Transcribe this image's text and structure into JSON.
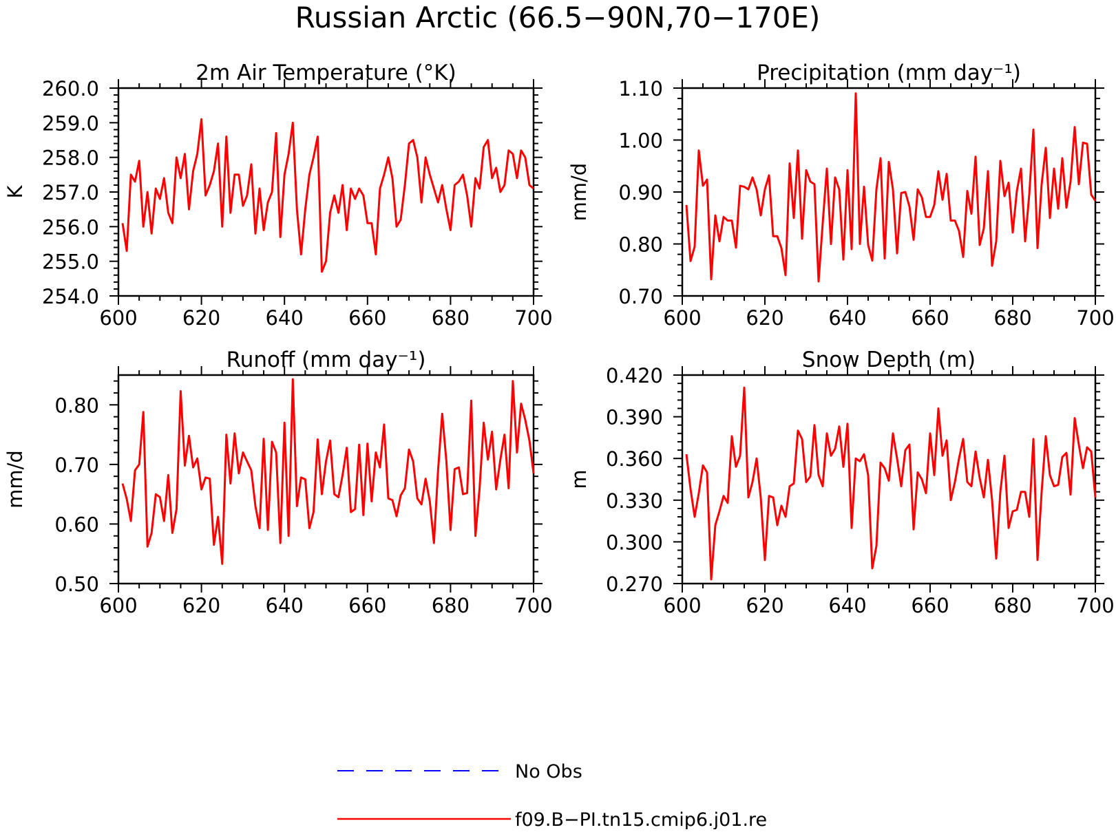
{
  "page_title": "Russian Arctic (66.5−90N,70−170E)",
  "legend": {
    "items": [
      {
        "label": "No Obs",
        "color": "#0000ff",
        "style": "dashed"
      },
      {
        "label": "f09.B−PI.tn15.cmip6.j01.re",
        "color": "#ff0000",
        "style": "solid"
      }
    ]
  },
  "chart_data": [
    {
      "type": "line",
      "title": "2m Air Temperature (°K)",
      "xlabel": "",
      "ylabel": "K",
      "xlim": [
        600,
        700
      ],
      "ylim": [
        254.0,
        260.0
      ],
      "xticks": [
        600,
        620,
        640,
        660,
        680,
        700
      ],
      "yticks": [
        254.0,
        255.0,
        256.0,
        257.0,
        258.0,
        259.0,
        260.0
      ],
      "ytick_decimals": 1,
      "grid": false,
      "series": [
        {
          "name": "f09.B−PI.tn15.cmip6.j01.re",
          "color": "#ff0000",
          "x_start": 601,
          "x_step": 1,
          "values": [
            256.1,
            255.3,
            257.5,
            257.3,
            257.9,
            256.0,
            257.0,
            255.8,
            257.1,
            256.8,
            257.4,
            256.4,
            256.1,
            258.0,
            257.4,
            258.1,
            256.5,
            257.6,
            258.1,
            259.1,
            256.9,
            257.2,
            257.6,
            258.4,
            256.0,
            258.6,
            256.4,
            257.5,
            257.5,
            256.6,
            256.9,
            257.8,
            255.8,
            257.1,
            255.9,
            256.7,
            257.0,
            258.7,
            255.7,
            257.5,
            258.1,
            259.0,
            256.5,
            255.2,
            256.5,
            257.5,
            258.0,
            258.6,
            254.7,
            255.0,
            256.4,
            256.9,
            256.4,
            257.2,
            255.9,
            257.1,
            256.8,
            257.1,
            256.9,
            256.1,
            256.1,
            255.2,
            257.1,
            257.5,
            258.0,
            257.4,
            256.0,
            256.2,
            257.2,
            258.4,
            258.5,
            258.0,
            256.7,
            258.0,
            257.5,
            257.1,
            256.7,
            257.2,
            256.5,
            255.9,
            257.2,
            257.3,
            257.5,
            256.9,
            256.0,
            257.4,
            257.1,
            258.3,
            258.5,
            257.4,
            257.7,
            257.0,
            257.2,
            258.2,
            258.1,
            257.4,
            258.2,
            258.0,
            257.2,
            257.1
          ]
        }
      ]
    },
    {
      "type": "line",
      "title": "Precipitation (mm day⁻¹)",
      "xlabel": "",
      "ylabel": "mm/d",
      "xlim": [
        600,
        700
      ],
      "ylim": [
        0.7,
        1.1
      ],
      "xticks": [
        600,
        620,
        640,
        660,
        680,
        700
      ],
      "yticks": [
        0.7,
        0.8,
        0.9,
        1.0,
        1.1
      ],
      "ytick_decimals": 2,
      "grid": false,
      "series": [
        {
          "name": "f09.B−PI.tn15.cmip6.j01.re",
          "color": "#ff0000",
          "x_start": 601,
          "x_step": 1,
          "values": [
            0.875,
            0.767,
            0.795,
            0.98,
            0.912,
            0.924,
            0.732,
            0.855,
            0.805,
            0.852,
            0.845,
            0.845,
            0.793,
            0.912,
            0.91,
            0.905,
            0.928,
            0.905,
            0.855,
            0.905,
            0.932,
            0.815,
            0.815,
            0.792,
            0.74,
            0.955,
            0.85,
            0.98,
            0.81,
            0.942,
            0.92,
            0.915,
            0.728,
            0.84,
            0.945,
            0.8,
            0.928,
            0.905,
            0.77,
            0.942,
            0.79,
            1.09,
            0.8,
            0.91,
            0.798,
            0.768,
            0.905,
            0.965,
            0.772,
            0.958,
            0.905,
            0.782,
            0.898,
            0.9,
            0.872,
            0.808,
            0.905,
            0.89,
            0.852,
            0.852,
            0.875,
            0.94,
            0.885,
            0.935,
            0.845,
            0.845,
            0.825,
            0.775,
            0.902,
            0.858,
            0.968,
            0.798,
            0.83,
            0.94,
            0.758,
            0.805,
            0.96,
            0.892,
            0.918,
            0.822,
            0.902,
            0.945,
            0.805,
            0.895,
            1.02,
            0.792,
            0.915,
            0.985,
            0.85,
            0.945,
            0.868,
            0.965,
            0.87,
            0.92,
            1.025,
            0.915,
            0.995,
            0.993,
            0.895,
            0.883
          ]
        }
      ]
    },
    {
      "type": "line",
      "title": "Runoff (mm day⁻¹)",
      "xlabel": "",
      "ylabel": "mm/d",
      "xlim": [
        600,
        700
      ],
      "ylim": [
        0.5,
        0.85
      ],
      "xticks": [
        600,
        620,
        640,
        660,
        680,
        700
      ],
      "yticks": [
        0.5,
        0.6,
        0.7,
        0.8
      ],
      "ytick_decimals": 2,
      "grid": false,
      "series": [
        {
          "name": "f09.B−PI.tn15.cmip6.j01.re",
          "color": "#ff0000",
          "x_start": 601,
          "x_step": 1,
          "values": [
            0.668,
            0.642,
            0.605,
            0.69,
            0.7,
            0.788,
            0.562,
            0.585,
            0.65,
            0.645,
            0.605,
            0.682,
            0.585,
            0.625,
            0.823,
            0.698,
            0.748,
            0.695,
            0.71,
            0.658,
            0.678,
            0.676,
            0.565,
            0.612,
            0.533,
            0.75,
            0.668,
            0.752,
            0.685,
            0.72,
            0.705,
            0.69,
            0.63,
            0.593,
            0.743,
            0.59,
            0.738,
            0.72,
            0.568,
            0.77,
            0.58,
            0.843,
            0.63,
            0.678,
            0.675,
            0.593,
            0.62,
            0.742,
            0.65,
            0.705,
            0.74,
            0.65,
            0.645,
            0.682,
            0.728,
            0.62,
            0.625,
            0.733,
            0.615,
            0.735,
            0.638,
            0.72,
            0.695,
            0.767,
            0.643,
            0.64,
            0.613,
            0.648,
            0.66,
            0.725,
            0.705,
            0.643,
            0.633,
            0.676,
            0.638,
            0.568,
            0.69,
            0.785,
            0.705,
            0.59,
            0.692,
            0.695,
            0.65,
            0.652,
            0.807,
            0.58,
            0.66,
            0.77,
            0.708,
            0.755,
            0.658,
            0.708,
            0.75,
            0.66,
            0.84,
            0.72,
            0.802,
            0.775,
            0.74,
            0.685
          ]
        }
      ]
    },
    {
      "type": "line",
      "title": "Snow Depth (m)",
      "xlabel": "",
      "ylabel": "m",
      "xlim": [
        600,
        700
      ],
      "ylim": [
        0.27,
        0.42
      ],
      "xticks": [
        600,
        620,
        640,
        660,
        680,
        700
      ],
      "yticks": [
        0.27,
        0.3,
        0.33,
        0.36,
        0.39,
        0.42
      ],
      "ytick_decimals": 3,
      "grid": false,
      "series": [
        {
          "name": "f09.B−PI.tn15.cmip6.j01.re",
          "color": "#ff0000",
          "x_start": 601,
          "x_step": 1,
          "values": [
            0.363,
            0.338,
            0.318,
            0.335,
            0.355,
            0.35,
            0.273,
            0.312,
            0.322,
            0.333,
            0.328,
            0.376,
            0.354,
            0.362,
            0.411,
            0.332,
            0.343,
            0.36,
            0.332,
            0.287,
            0.333,
            0.332,
            0.312,
            0.326,
            0.318,
            0.34,
            0.342,
            0.38,
            0.374,
            0.343,
            0.347,
            0.384,
            0.348,
            0.34,
            0.378,
            0.362,
            0.367,
            0.383,
            0.354,
            0.385,
            0.31,
            0.36,
            0.358,
            0.363,
            0.348,
            0.281,
            0.297,
            0.357,
            0.353,
            0.344,
            0.378,
            0.36,
            0.34,
            0.366,
            0.37,
            0.309,
            0.35,
            0.345,
            0.335,
            0.378,
            0.348,
            0.396,
            0.362,
            0.373,
            0.33,
            0.343,
            0.36,
            0.374,
            0.343,
            0.34,
            0.365,
            0.346,
            0.332,
            0.359,
            0.33,
            0.288,
            0.336,
            0.362,
            0.31,
            0.322,
            0.323,
            0.336,
            0.336,
            0.318,
            0.374,
            0.287,
            0.336,
            0.376,
            0.348,
            0.34,
            0.341,
            0.361,
            0.364,
            0.334,
            0.389,
            0.37,
            0.353,
            0.368,
            0.365,
            0.332
          ]
        }
      ]
    }
  ]
}
